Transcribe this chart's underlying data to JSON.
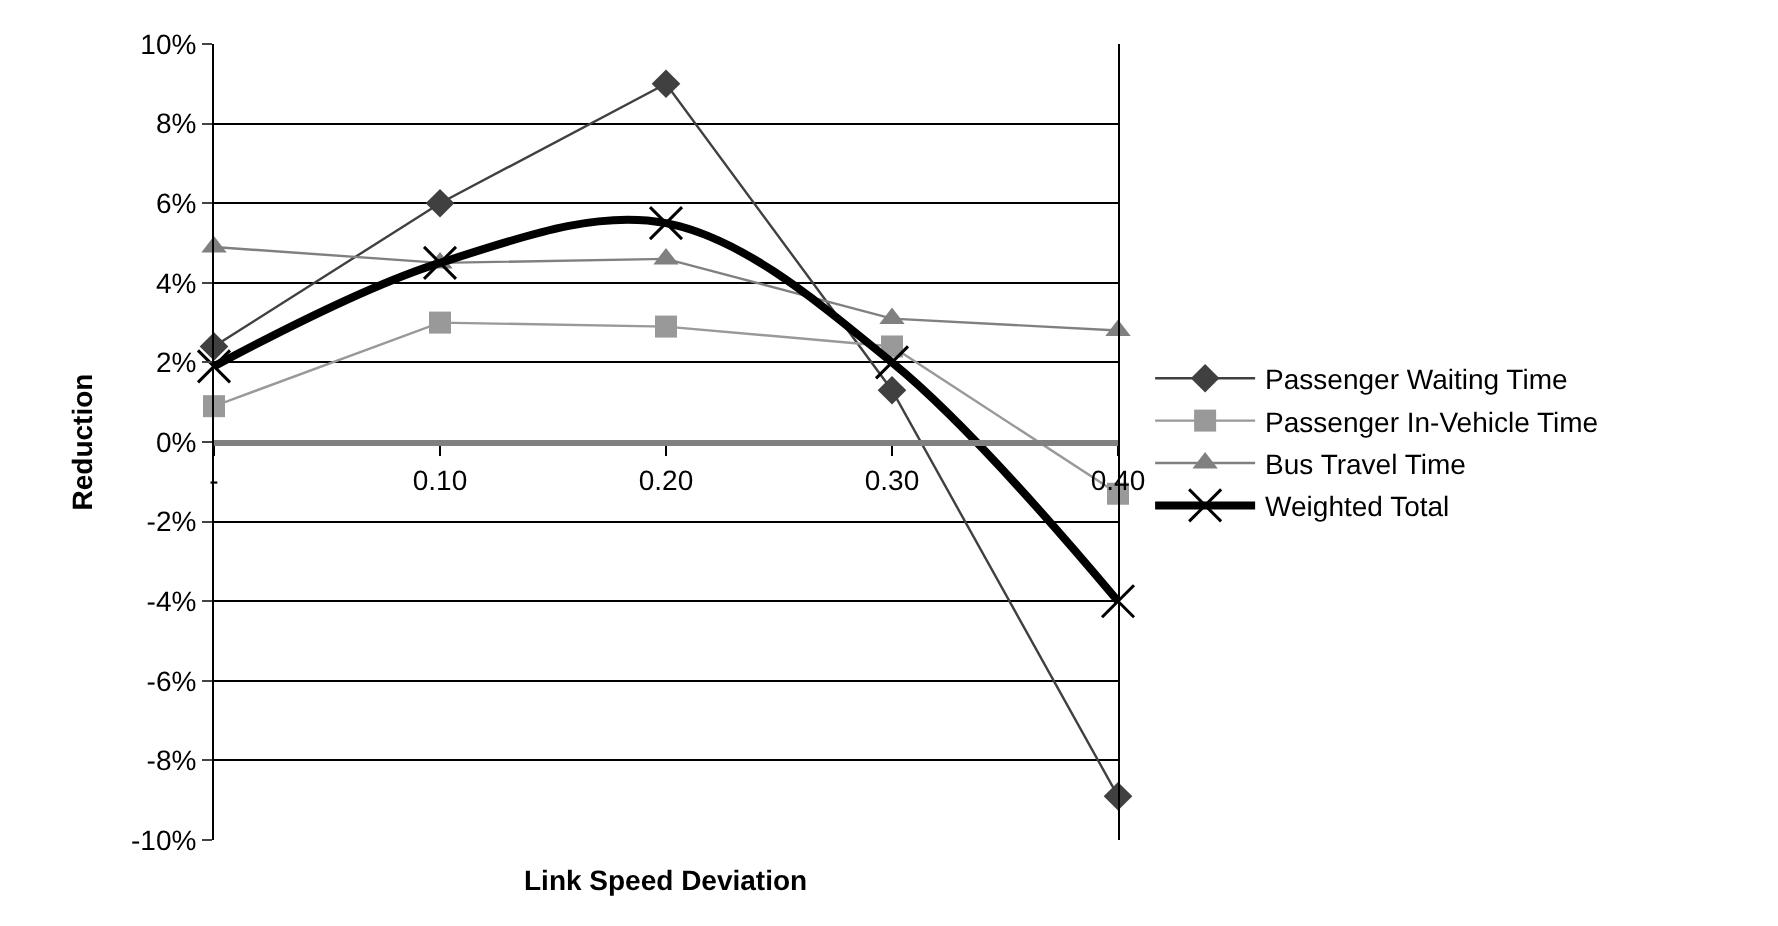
{
  "chart_data": {
    "type": "line",
    "xlabel": "Link Speed Deviation",
    "ylabel": "Reduction",
    "x": [
      0,
      0.1,
      0.2,
      0.3,
      0.4
    ],
    "xlim": [
      0,
      0.4
    ],
    "xticks": [
      {
        "value": 0,
        "label": "-"
      },
      {
        "value": 0.1,
        "label": "0.10"
      },
      {
        "value": 0.2,
        "label": "0.20"
      },
      {
        "value": 0.3,
        "label": "0.30"
      },
      {
        "value": 0.4,
        "label": "0.40"
      }
    ],
    "ylim": [
      -10,
      10
    ],
    "yticks": [
      {
        "value": -10,
        "label": "-10%"
      },
      {
        "value": -8,
        "label": "-8%"
      },
      {
        "value": -6,
        "label": "-6%"
      },
      {
        "value": -4,
        "label": "-4%"
      },
      {
        "value": -2,
        "label": "-2%"
      },
      {
        "value": 0,
        "label": "0%"
      },
      {
        "value": 2,
        "label": "2%"
      },
      {
        "value": 4,
        "label": "4%"
      },
      {
        "value": 6,
        "label": "6%"
      },
      {
        "value": 8,
        "label": "8%"
      },
      {
        "value": 10,
        "label": "10%"
      }
    ],
    "grid": "y",
    "legend": "right",
    "series": [
      {
        "name": "Passenger Waiting Time",
        "color": "#404040",
        "marker": "diamond",
        "values": [
          2.4,
          6.0,
          9.0,
          1.3,
          -8.9
        ]
      },
      {
        "name": "Passenger In-Vehicle Time",
        "color": "#999999",
        "marker": "square",
        "values": [
          0.9,
          3.0,
          2.9,
          2.4,
          -1.3
        ]
      },
      {
        "name": "Bus Travel Time",
        "color": "#808080",
        "marker": "triangle",
        "values": [
          4.9,
          4.5,
          4.6,
          3.1,
          2.8
        ]
      },
      {
        "name": "Weighted Total",
        "color": "#000000",
        "marker": "cross",
        "values": [
          1.9,
          4.5,
          5.5,
          2.0,
          -4.0
        ]
      }
    ]
  }
}
